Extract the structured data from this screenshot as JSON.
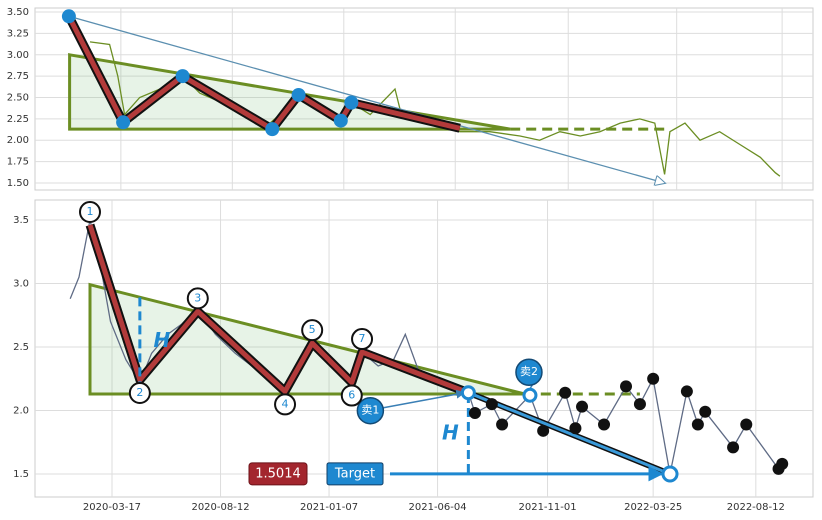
{
  "chart_data": [
    {
      "type": "line",
      "xlim": [
        "2019-11-24",
        "2022-09-22"
      ],
      "ylim": [
        1.418,
        3.547
      ],
      "yticks": [
        {
          "value": 1.5,
          "label": "1.50"
        },
        1.75,
        {
          "value": 2,
          "label": "2.00"
        },
        2.25,
        {
          "value": 2.5,
          "label": "2.50"
        },
        2.75,
        {
          "value": 3,
          "label": "3.00"
        },
        3.25,
        {
          "value": 3.5,
          "label": "3.50"
        }
      ],
      "xticks": [
        "2020-03-17",
        "2020-08-12",
        "2021-01-07",
        "2021-06-04",
        "2021-11-01",
        "2022-03-25",
        "2022-08-12"
      ],
      "show_xtick_labels": false,
      "grid": true,
      "color": "#6b8e23",
      "x": [
        "2020-02-05",
        "2020-03-02",
        "2020-03-13",
        "2020-03-22",
        "2020-04-11",
        "2020-05-08",
        "2020-06-07",
        "2020-06-30",
        "2020-08-09",
        "2020-10-01",
        "2020-10-27",
        "2020-11-10",
        "2020-12-06",
        "2021-01-02",
        "2021-01-15",
        "2021-02-11",
        "2021-03-16",
        "2021-03-23",
        "2021-05-01",
        "2021-06-10",
        "2021-07-20",
        "2021-08-29",
        "2021-09-24",
        "2021-10-21",
        "2021-11-17",
        "2021-12-13",
        "2022-01-09",
        "2022-02-04",
        "2022-02-24",
        "2022-03-09",
        "2022-03-16",
        "2022-04-05",
        "2022-04-25",
        "2022-05-21",
        "2022-06-17",
        "2022-07-14",
        "2022-08-03",
        "2022-08-09"
      ],
      "values": [
        3.15,
        3.12,
        2.75,
        2.3,
        2.5,
        2.6,
        2.75,
        2.55,
        2.4,
        2.2,
        2.4,
        2.55,
        2.35,
        2.25,
        2.45,
        2.3,
        2.6,
        2.35,
        2.25,
        2.1,
        2.1,
        2.05,
        2.0,
        2.1,
        2.05,
        2.1,
        2.2,
        2.25,
        2.2,
        1.6,
        2.1,
        2.2,
        2.0,
        2.1,
        1.95,
        1.8,
        1.62,
        1.58
      ],
      "triangle": {
        "x": [
          "2020-01-09",
          "2021-08-16",
          "2020-01-09"
        ],
        "values": [
          3.0,
          2.13,
          2.13
        ]
      },
      "extension": {
        "x": [
          "2021-08-16",
          "2022-03-09"
        ],
        "values": [
          2.13,
          2.13
        ]
      },
      "trend_arrow": {
        "x": [
          "2020-01-08",
          "2022-03-09"
        ],
        "values": [
          3.45,
          1.5
        ]
      },
      "pattern": {
        "x": [
          "2020-01-08",
          "2020-03-20",
          "2020-06-07",
          "2020-10-04",
          "2020-11-08",
          "2021-01-03",
          "2021-01-17",
          "2021-06-10"
        ],
        "values": [
          3.45,
          2.21,
          2.75,
          2.13,
          2.53,
          2.23,
          2.44,
          2.14
        ]
      },
      "pivots": {
        "x": [
          "2020-01-08",
          "2020-03-20",
          "2020-06-07",
          "2020-10-04",
          "2020-11-08",
          "2021-01-03",
          "2021-01-17"
        ],
        "values": [
          3.45,
          2.21,
          2.75,
          2.13,
          2.53,
          2.23,
          2.44
        ]
      }
    },
    {
      "type": "line",
      "xlim": [
        "2019-12-03",
        "2022-10-29"
      ],
      "ylim": [
        1.319,
        3.657
      ],
      "yticks": [
        1.5,
        {
          "value": 2,
          "label": "2.0"
        },
        2.5,
        {
          "value": 3,
          "label": "3.0"
        },
        3.5
      ],
      "xticks": [
        "2020-03-17",
        "2020-08-12",
        "2021-01-07",
        "2021-06-04",
        "2021-11-01",
        "2022-03-25",
        "2022-08-12"
      ],
      "grid": true,
      "color": "#5f6b85",
      "x": [
        "2020-01-20",
        "2020-02-01",
        "2020-02-16",
        "2020-03-01",
        "2020-03-15",
        "2020-04-05",
        "2020-04-24",
        "2020-05-10",
        "2020-06-01",
        "2020-06-20",
        "2020-07-12",
        "2020-08-05",
        "2020-09-01",
        "2020-10-05",
        "2020-11-08",
        "2020-11-25",
        "2020-12-15",
        "2021-01-10",
        "2021-02-07",
        "2021-02-21",
        "2021-03-15",
        "2021-04-05",
        "2021-04-21",
        "2021-05-10",
        "2021-06-10",
        "2021-07-16",
        "2021-07-25",
        "2021-08-17",
        "2021-08-31",
        "2021-10-08",
        "2021-10-26",
        "2021-11-25",
        "2021-12-09",
        "2021-12-18",
        "2022-01-17",
        "2022-02-16",
        "2022-03-07",
        "2022-03-25",
        "2022-04-17",
        "2022-05-10",
        "2022-05-25",
        "2022-06-04",
        "2022-07-12",
        "2022-07-30",
        "2022-09-12",
        "2022-09-17"
      ],
      "values": [
        2.88,
        3.05,
        3.5,
        3.15,
        2.7,
        2.4,
        2.22,
        2.45,
        2.6,
        2.68,
        2.8,
        2.6,
        2.45,
        2.3,
        2.15,
        2.35,
        2.55,
        2.4,
        2.2,
        2.46,
        2.35,
        2.4,
        2.6,
        2.3,
        2.22,
        2.14,
        1.98,
        2.05,
        1.89,
        2.12,
        1.84,
        2.14,
        1.86,
        2.03,
        1.89,
        2.19,
        2.05,
        2.25,
        1.5,
        2.15,
        1.89,
        1.99,
        1.71,
        1.89,
        1.54,
        1.58
      ],
      "triangle": {
        "x": [
          "2020-02-16",
          "2021-10-01",
          "2020-02-16"
        ],
        "values": [
          2.99,
          2.13,
          2.13
        ]
      },
      "extension": {
        "x": [
          "2021-10-01",
          "2022-03-07"
        ],
        "values": [
          2.13,
          2.13
        ]
      },
      "pattern": {
        "x": [
          "2020-02-16",
          "2020-04-24",
          "2020-07-12",
          "2020-11-08",
          "2020-12-15",
          "2021-02-07",
          "2021-02-21",
          "2021-07-16"
        ],
        "values": [
          3.46,
          2.24,
          2.78,
          2.15,
          2.53,
          2.22,
          2.46,
          2.14
        ]
      },
      "pivots": {
        "x": [
          "2020-02-16",
          "2020-04-24",
          "2020-07-12",
          "2020-11-08",
          "2020-12-15",
          "2021-02-07",
          "2021-02-21"
        ],
        "values": [
          3.46,
          2.24,
          2.78,
          2.15,
          2.53,
          2.22,
          2.46
        ],
        "labels": [
          "1",
          "2",
          "3",
          "4",
          "5",
          "6",
          "7"
        ]
      },
      "h_lines": [
        {
          "x": "2020-04-24",
          "values": [
            2.89,
            2.2
          ],
          "label": "H"
        },
        {
          "x": "2021-07-16",
          "values": [
            2.13,
            1.5014
          ],
          "label": "H"
        }
      ],
      "drop": {
        "x": [
          "2021-07-16",
          "2022-04-17"
        ],
        "values": [
          2.14,
          1.5
        ]
      },
      "swings": {
        "x": [
          "2021-07-25",
          "2021-08-17",
          "2021-08-31",
          "2021-10-08",
          "2021-10-26",
          "2021-11-25",
          "2021-12-09",
          "2021-12-18",
          "2022-01-17",
          "2022-02-16",
          "2022-03-07",
          "2022-03-25",
          "2022-05-10",
          "2022-05-25",
          "2022-06-04",
          "2022-07-12",
          "2022-07-30",
          "2022-09-12",
          "2022-09-17"
        ],
        "values": [
          1.98,
          2.05,
          1.89,
          2.12,
          1.84,
          2.14,
          1.86,
          2.03,
          1.89,
          2.19,
          2.05,
          2.25,
          2.15,
          1.89,
          1.99,
          1.71,
          1.89,
          1.54,
          1.58
        ]
      },
      "target": {
        "value": 1.5014,
        "label": "Target"
      },
      "sells": [
        {
          "label": "卖1",
          "x": "2021-07-16",
          "value": 2.14
        },
        {
          "label": "卖2",
          "x": "2021-10-08",
          "value": 2.12
        }
      ]
    }
  ]
}
